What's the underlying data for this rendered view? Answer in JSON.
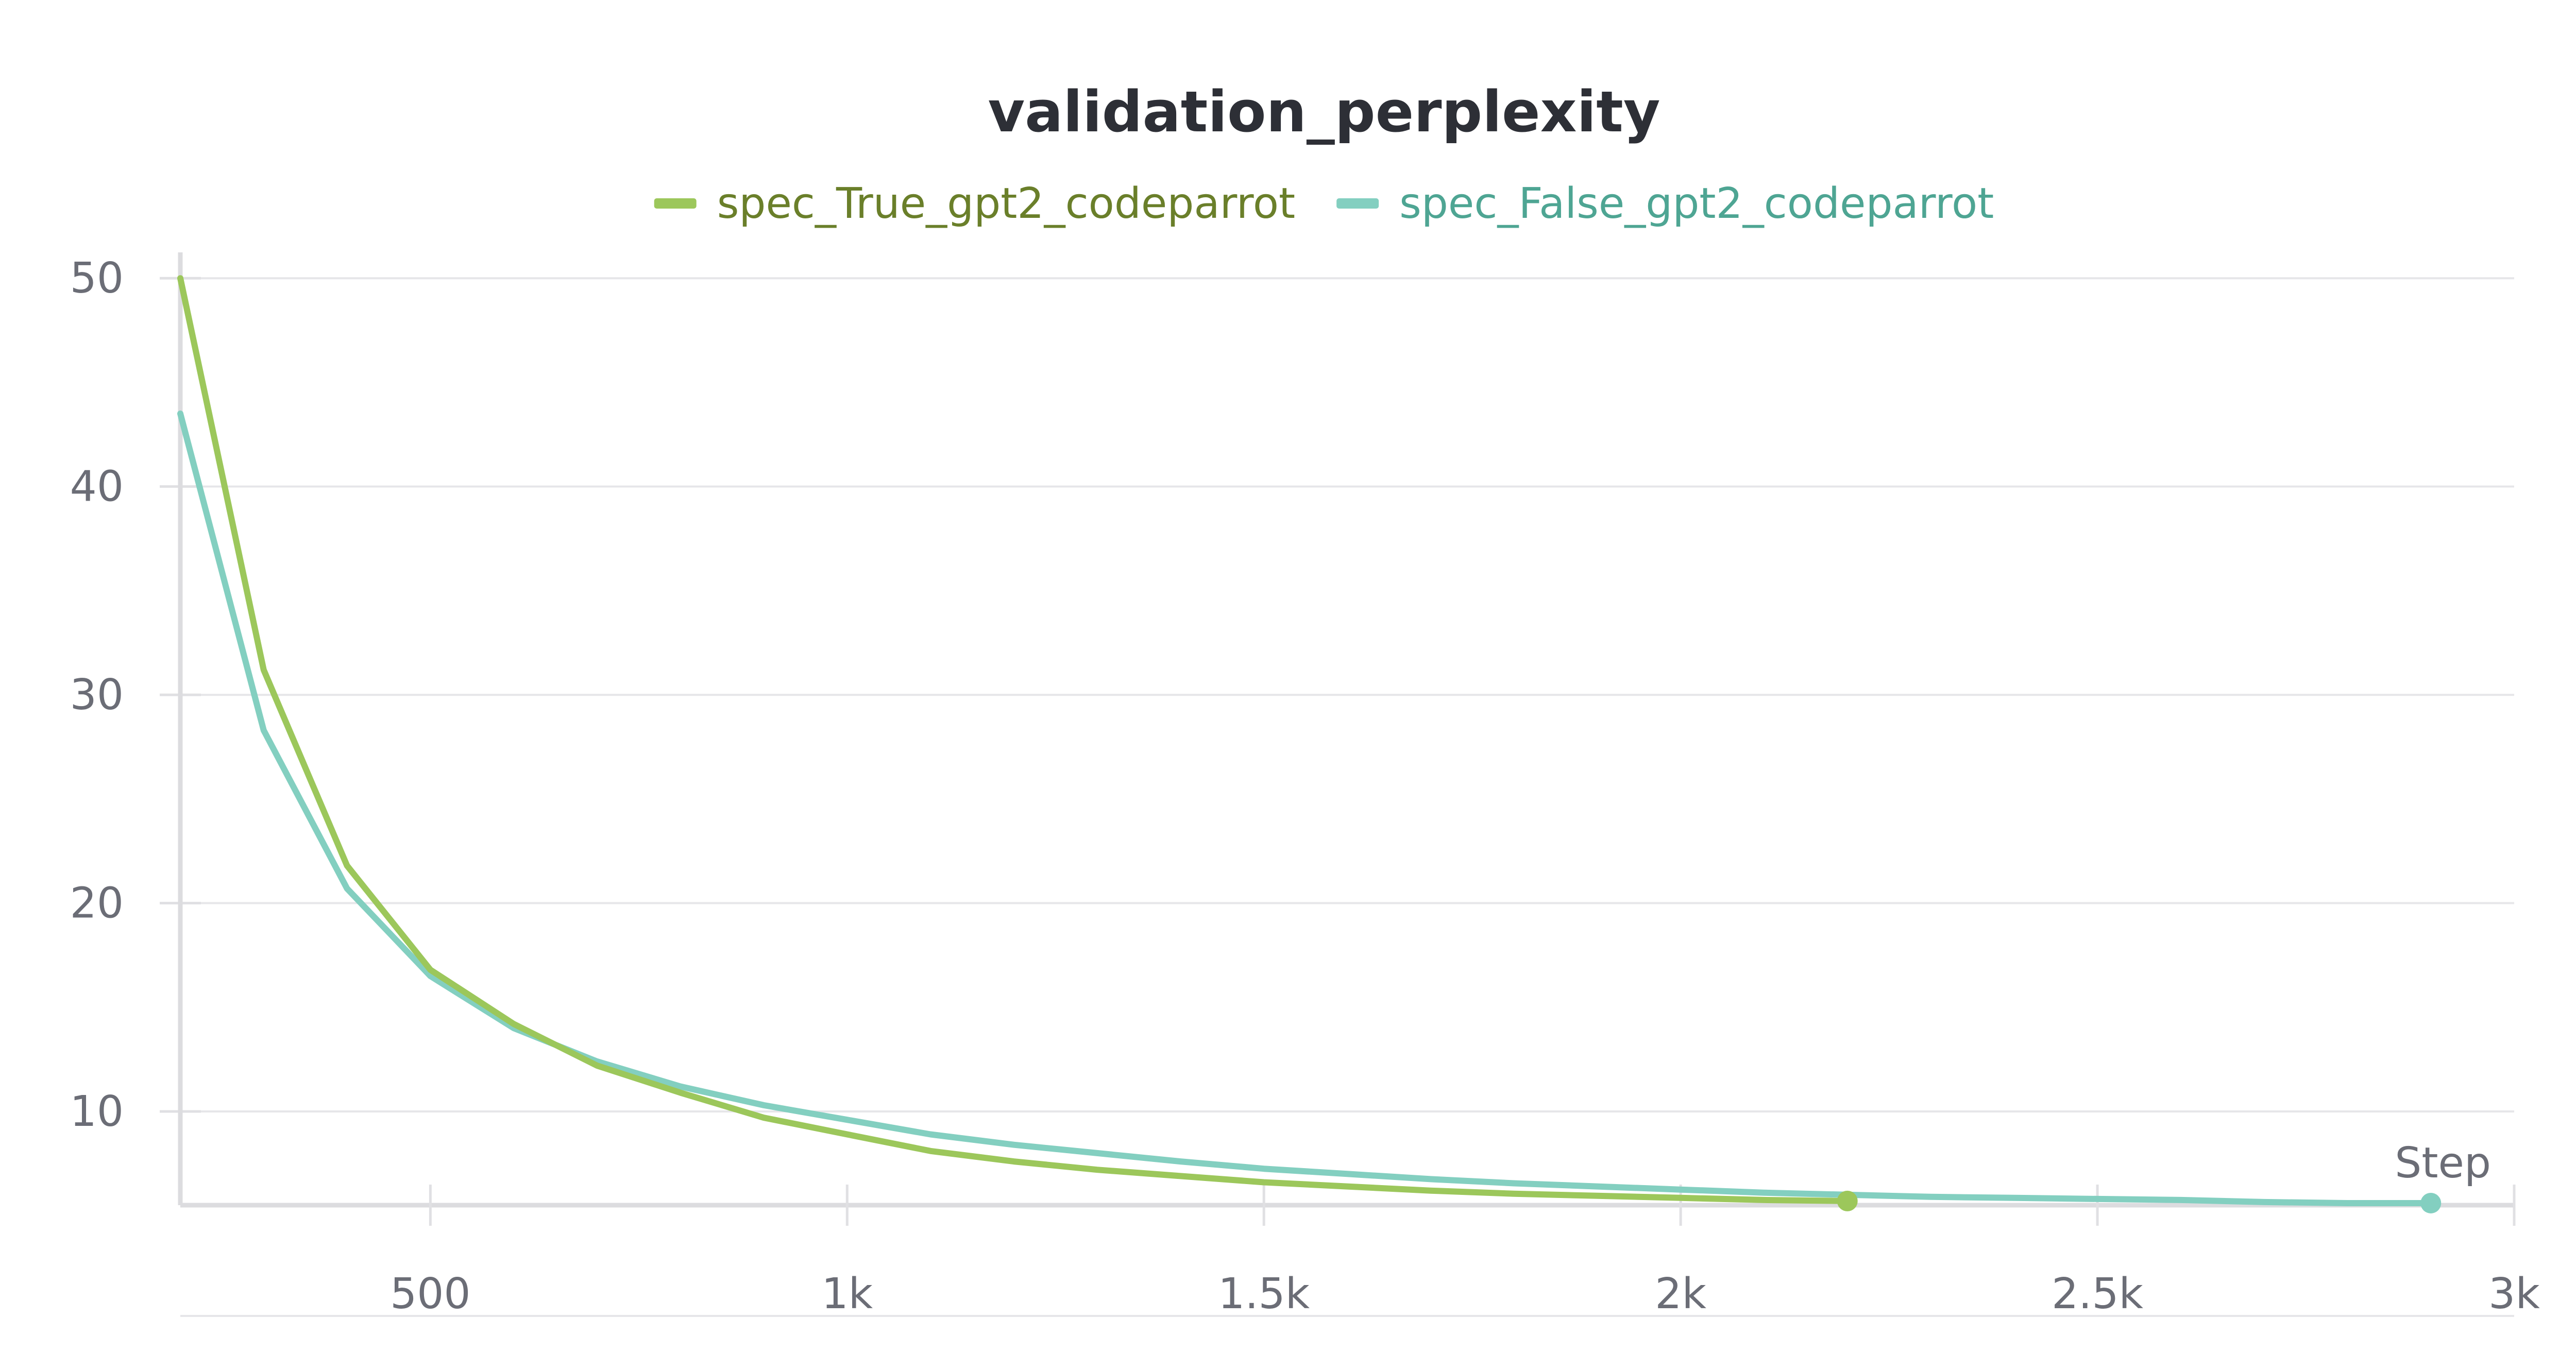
{
  "chart_data": {
    "type": "line",
    "title": "validation_perplexity",
    "xlabel": "Step",
    "ylabel": "",
    "xlim": [
      200,
      3000
    ],
    "ylim": [
      5.5,
      50.5
    ],
    "grid": true,
    "legend_position": "top-center",
    "x_ticks": [
      {
        "value": 500,
        "label": "500"
      },
      {
        "value": 1000,
        "label": "1k"
      },
      {
        "value": 1500,
        "label": "1.5k"
      },
      {
        "value": 2000,
        "label": "2k"
      },
      {
        "value": 2500,
        "label": "2.5k"
      },
      {
        "value": 3000,
        "label": "3k"
      }
    ],
    "y_ticks": [
      {
        "value": 10,
        "label": "10"
      },
      {
        "value": 20,
        "label": "20"
      },
      {
        "value": 30,
        "label": "30"
      },
      {
        "value": 40,
        "label": "40"
      },
      {
        "value": 50,
        "label": "50"
      }
    ],
    "series": [
      {
        "name": "spec_True_gpt2_codeparrot",
        "color": "#9cc75b",
        "label_color": "#6a7f2a",
        "x": [
          200,
          300,
          400,
          500,
          600,
          700,
          800,
          900,
          1000,
          1100,
          1200,
          1300,
          1400,
          1500,
          1600,
          1700,
          1800,
          1900,
          2000,
          2100,
          2200
        ],
        "values": [
          50.0,
          31.2,
          21.8,
          16.8,
          14.2,
          12.2,
          10.9,
          9.7,
          8.9,
          8.1,
          7.6,
          7.2,
          6.9,
          6.6,
          6.4,
          6.2,
          6.05,
          5.95,
          5.85,
          5.75,
          5.7
        ]
      },
      {
        "name": "spec_False_gpt2_codeparrot",
        "color": "#83cfc0",
        "label_color": "#4ea593",
        "x": [
          200,
          300,
          400,
          500,
          600,
          700,
          800,
          900,
          1000,
          1100,
          1200,
          1300,
          1400,
          1500,
          1600,
          1700,
          1800,
          1900,
          2000,
          2100,
          2200,
          2300,
          2400,
          2500,
          2600,
          2700,
          2800,
          2900
        ],
        "values": [
          43.5,
          28.3,
          20.7,
          16.5,
          14.0,
          12.4,
          11.2,
          10.3,
          9.6,
          8.9,
          8.4,
          8.0,
          7.6,
          7.25,
          7.0,
          6.75,
          6.55,
          6.4,
          6.25,
          6.1,
          6.0,
          5.9,
          5.85,
          5.8,
          5.75,
          5.65,
          5.6,
          5.6
        ]
      }
    ]
  }
}
